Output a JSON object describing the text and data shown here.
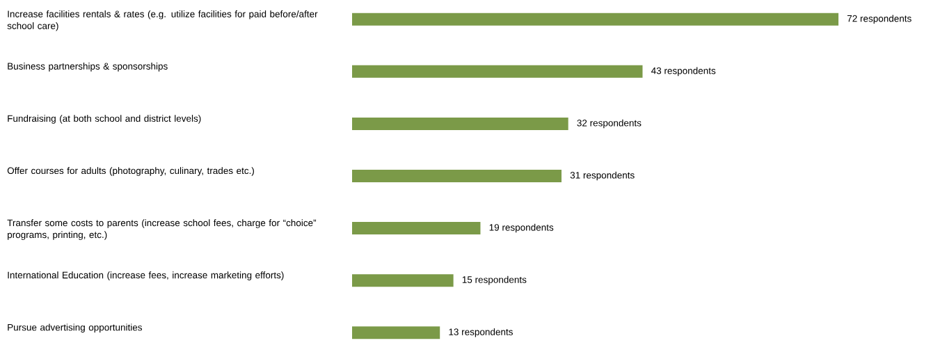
{
  "chart_data": {
    "type": "bar",
    "orientation": "horizontal",
    "color": "#7b9a48",
    "categories": [
      "Increase facilities rentals & rates (e.g. utilize facilities for paid before/after school care)",
      "Business partnerships & sponsorships",
      "Fundraising (at both school and district levels)",
      "Offer courses for adults (photography, culinary, trades etc.)",
      "Transfer some costs to parents (increase school fees, charge for “choice” programs, printing, etc.)",
      "International Education (increase fees, increase marketing efforts)",
      "Pursue advertising opportunities"
    ],
    "values": [
      72,
      43,
      32,
      31,
      19,
      15,
      13
    ],
    "value_labels": [
      "72 respondents",
      "43 respondents",
      "32 respondents",
      "31 respondents",
      "19 respondents",
      "15 respondents",
      "13 respondents"
    ]
  }
}
